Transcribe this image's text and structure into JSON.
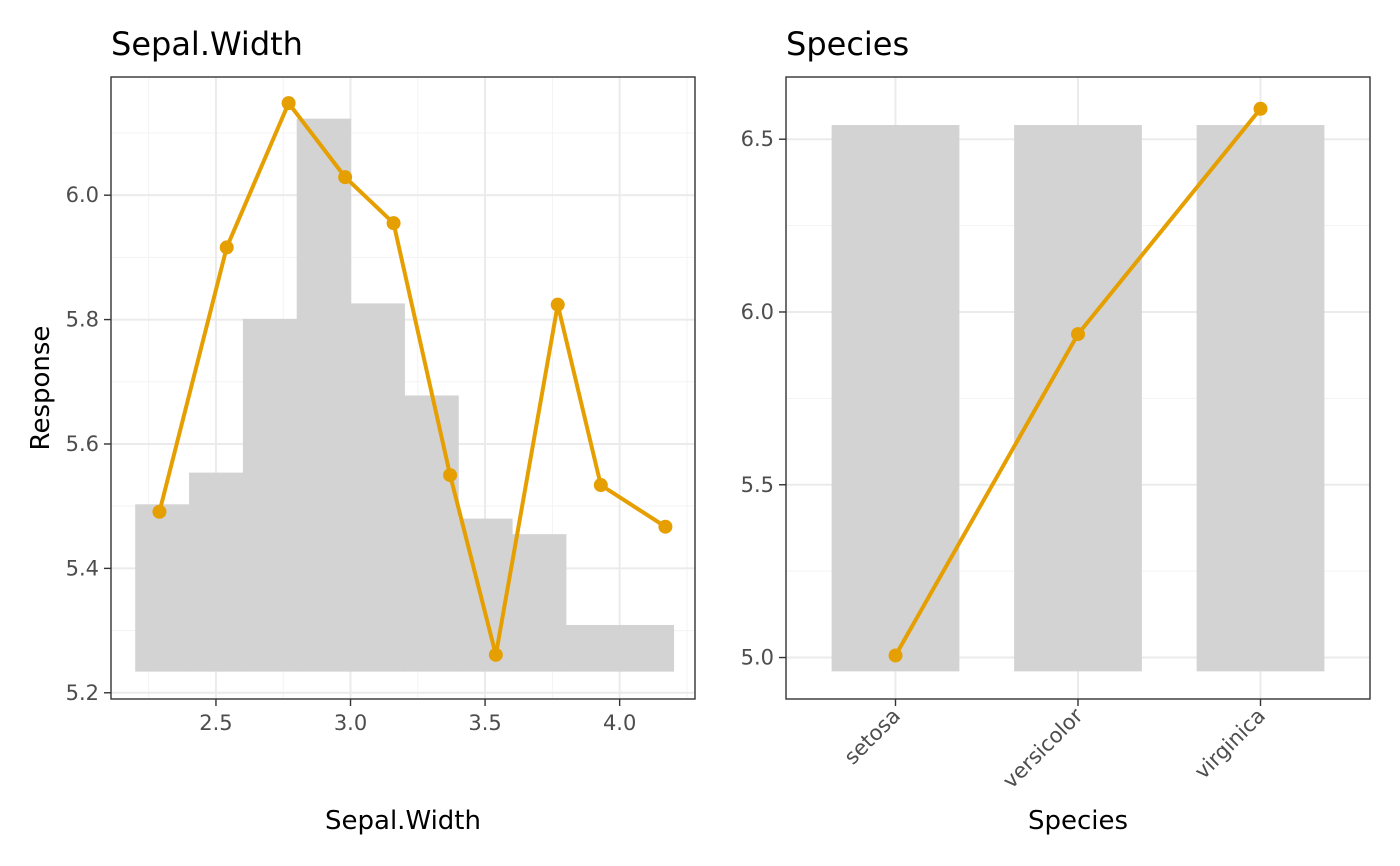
{
  "chart_data": [
    {
      "type": "line",
      "title": "Sepal.Width",
      "xlabel": "Sepal.Width",
      "ylabel": "Response",
      "xlim": [
        2.11,
        4.28
      ],
      "ylim": [
        5.19,
        6.19
      ],
      "x_ticks": [
        2.5,
        3.0,
        3.5,
        4.0
      ],
      "x_tick_labels": [
        "2.5",
        "3.0",
        "3.5",
        "4.0"
      ],
      "y_ticks": [
        5.2,
        5.4,
        5.6,
        5.8,
        6.0
      ],
      "y_tick_labels": [
        "5.2",
        "5.4",
        "5.6",
        "5.8",
        "6.0"
      ],
      "grid": true,
      "histogram": {
        "bin_edges": [
          2.2,
          2.4,
          2.6,
          2.8,
          3.0,
          3.2,
          3.4,
          3.6,
          3.8,
          4.0,
          4.2
        ],
        "tops": [
          5.503,
          5.554,
          5.801,
          6.123,
          5.826,
          5.678,
          5.48,
          5.455,
          5.309,
          5.309
        ],
        "base": 5.234,
        "color": "#d3d3d3"
      },
      "series": [
        {
          "x": [
            2.29,
            2.54,
            2.77,
            2.98,
            3.16,
            3.37,
            3.54,
            3.77,
            3.93,
            4.17
          ],
          "y": [
            5.491,
            5.916,
            6.148,
            6.029,
            5.955,
            5.55,
            5.261,
            5.824,
            5.534,
            5.467
          ],
          "color": "#e69f00"
        }
      ]
    },
    {
      "type": "line",
      "title": "Species",
      "xlabel": "Species",
      "ylabel": "",
      "categories": [
        "setosa",
        "versicolor",
        "virginica"
      ],
      "ylim": [
        4.88,
        6.68
      ],
      "y_ticks": [
        5.0,
        5.5,
        6.0,
        6.5
      ],
      "y_tick_labels": [
        "5.0",
        "5.5",
        "6.0",
        "6.5"
      ],
      "grid": true,
      "bars": {
        "tops": [
          6.541,
          6.541,
          6.541
        ],
        "base": 4.96,
        "color": "#d3d3d3"
      },
      "series": [
        {
          "values": [
            5.006,
            5.936,
            6.588
          ],
          "color": "#e69f00"
        }
      ]
    }
  ]
}
